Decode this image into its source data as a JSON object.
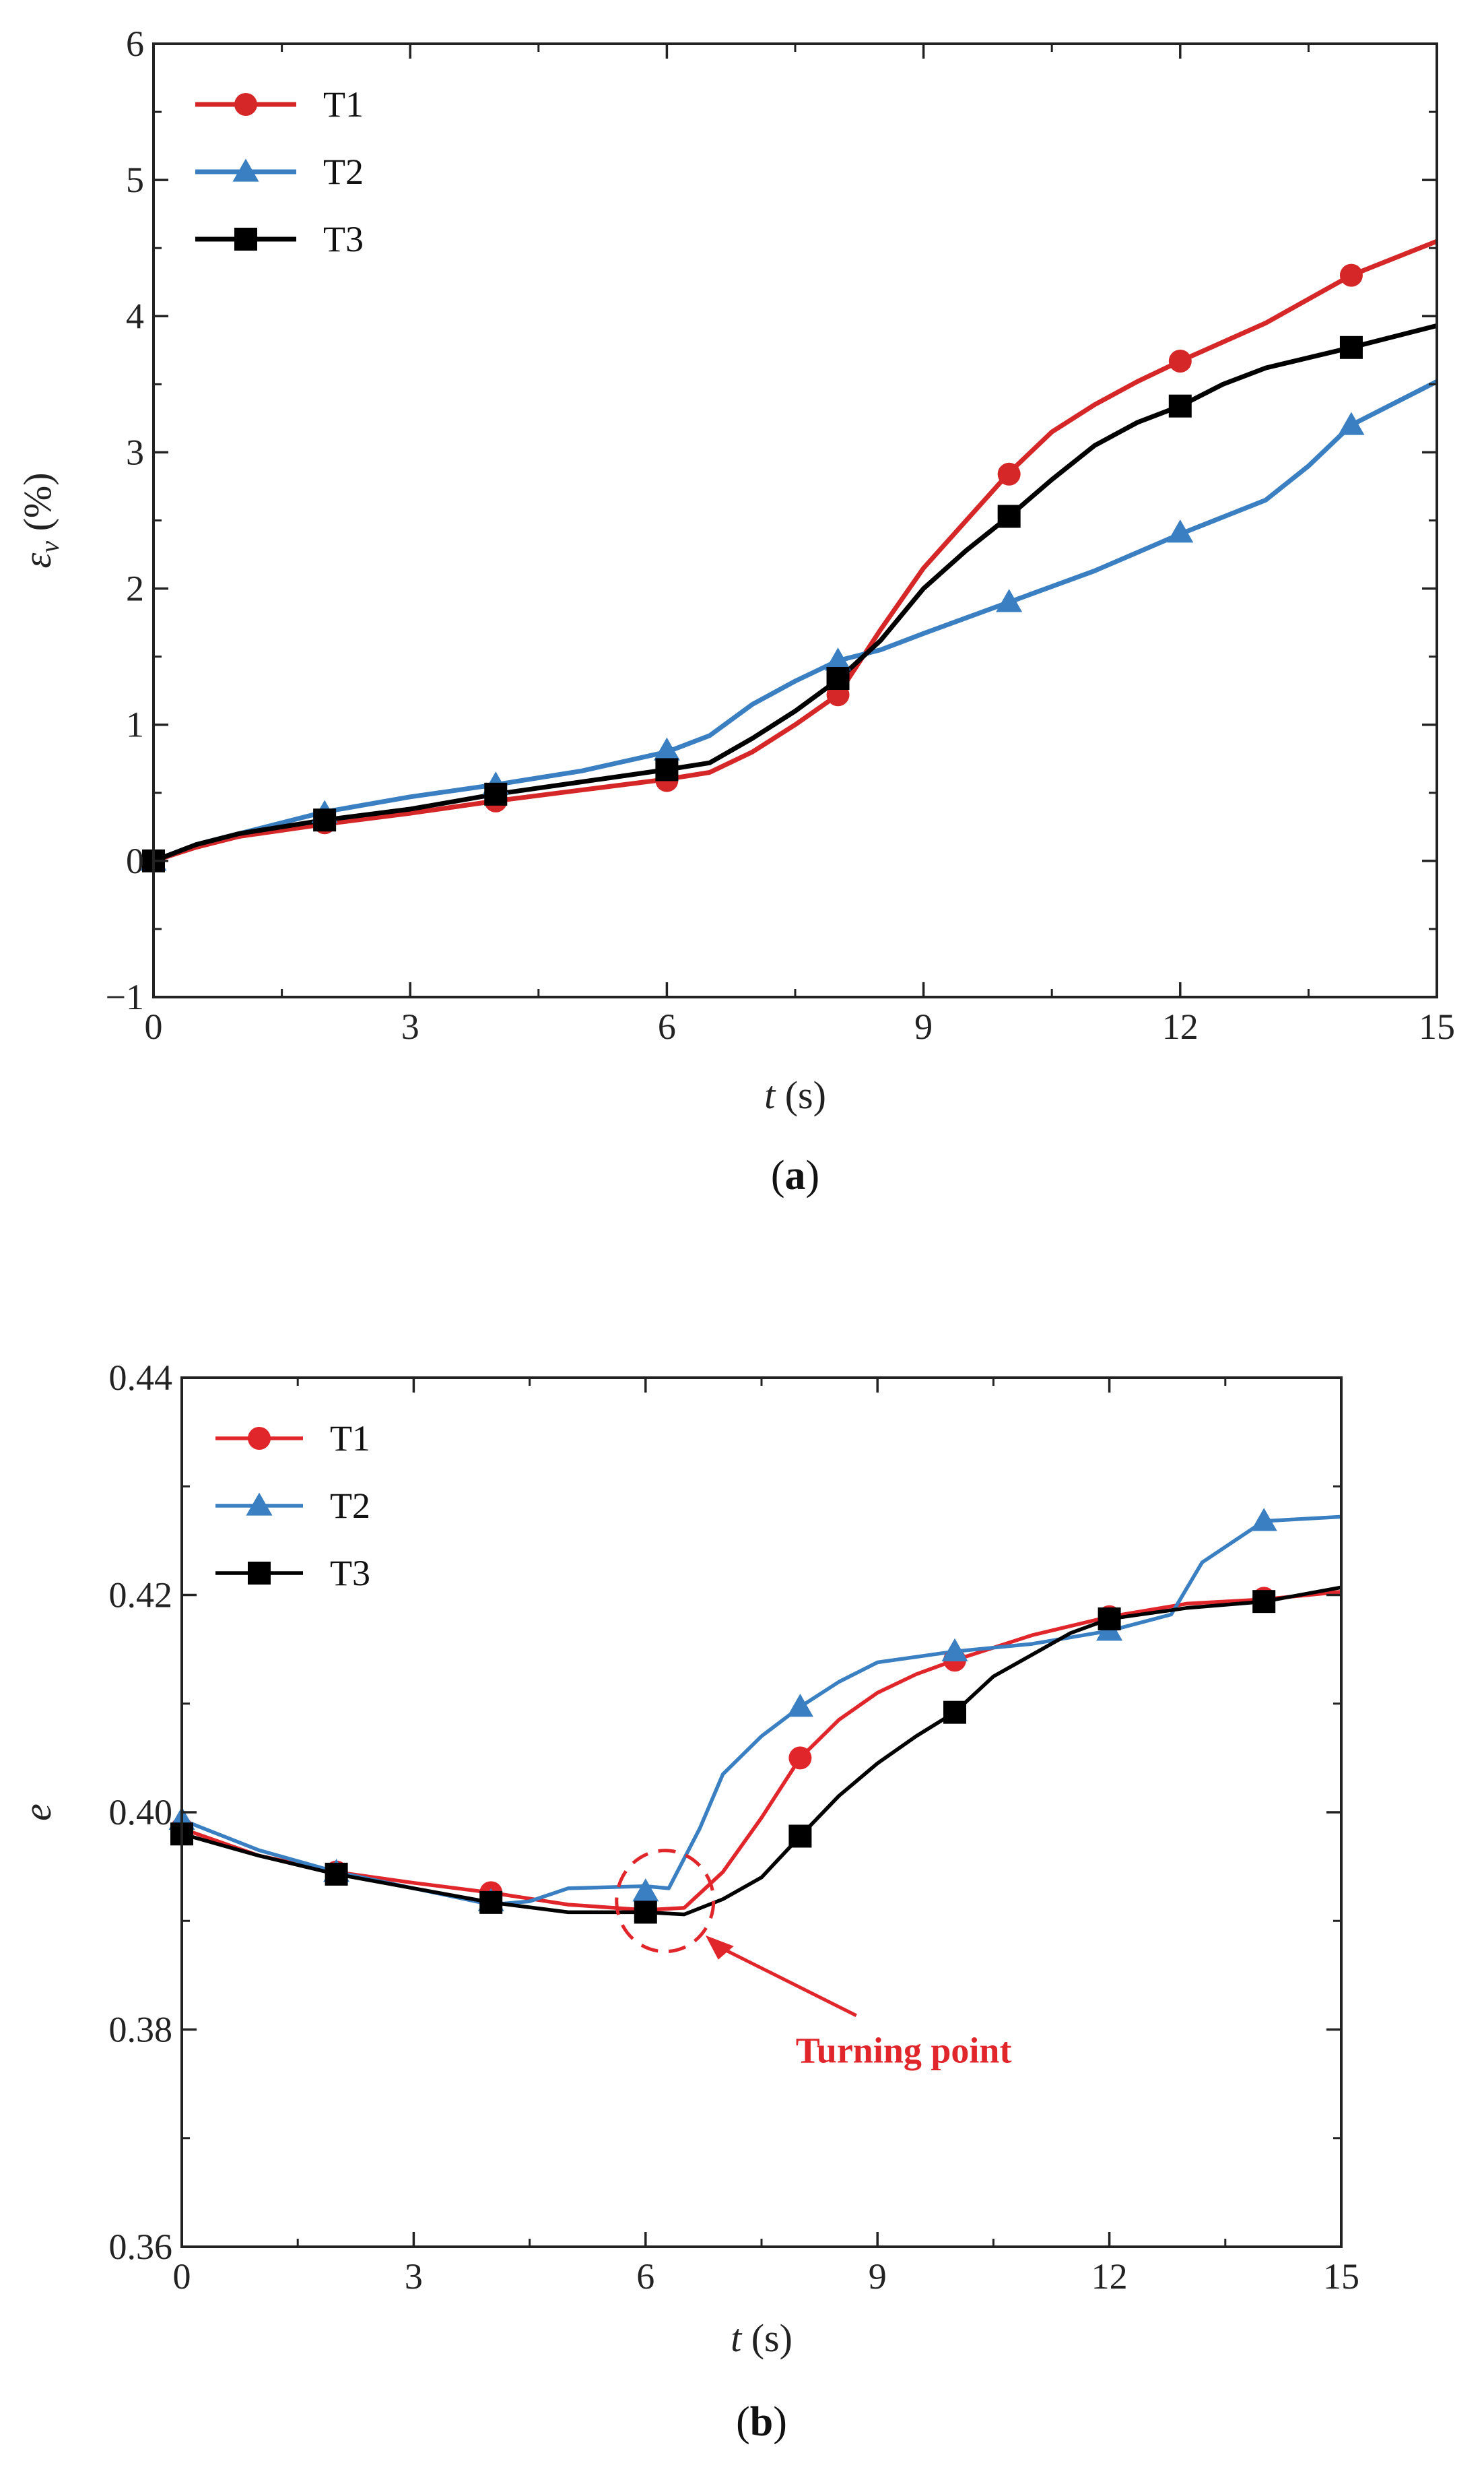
{
  "chart_data": [
    {
      "type": "line",
      "id": "a",
      "panel_label": "a",
      "xlabel_italic": "t",
      "xlabel_unit": " (s)",
      "ylabel_symbol": "ε",
      "ylabel_sub": "v",
      "ylabel_unit": " (%)",
      "xlim": [
        0,
        15
      ],
      "ylim": [
        -1,
        6
      ],
      "xticks": [
        0,
        3,
        6,
        9,
        12,
        15
      ],
      "xtick_labels": [
        "0",
        "3",
        "6",
        "9",
        "12",
        "15"
      ],
      "yticks": [
        -1,
        0,
        1,
        2,
        3,
        4,
        5,
        6
      ],
      "ytick_labels": [
        "−1",
        "0",
        "1",
        "2",
        "3",
        "4",
        "5",
        "6"
      ],
      "legend_position": "top-left",
      "series": [
        {
          "name": "T1",
          "color": "#d62728",
          "marker": "circle",
          "line": [
            [
              0,
              0
            ],
            [
              0.5,
              0.1
            ],
            [
              1,
              0.18
            ],
            [
              2,
              0.27
            ],
            [
              3,
              0.35
            ],
            [
              4,
              0.44
            ],
            [
              5,
              0.52
            ],
            [
              6,
              0.6
            ],
            [
              6.5,
              0.65
            ],
            [
              7,
              0.8
            ],
            [
              7.5,
              1.0
            ],
            [
              8,
              1.22
            ],
            [
              8.5,
              1.7
            ],
            [
              9,
              2.15
            ],
            [
              9.5,
              2.5
            ],
            [
              10,
              2.85
            ],
            [
              10.5,
              3.15
            ],
            [
              11,
              3.35
            ],
            [
              11.5,
              3.52
            ],
            [
              12,
              3.67
            ],
            [
              13,
              3.95
            ],
            [
              14,
              4.3
            ],
            [
              15,
              4.55
            ]
          ],
          "markers": [
            [
              0,
              0
            ],
            [
              2,
              0.28
            ],
            [
              4,
              0.44
            ],
            [
              6,
              0.59
            ],
            [
              8,
              1.22
            ],
            [
              10,
              2.84
            ],
            [
              12,
              3.67
            ],
            [
              14,
              4.3
            ]
          ]
        },
        {
          "name": "T2",
          "color": "#3a7fc1",
          "marker": "triangle",
          "line": [
            [
              0,
              0
            ],
            [
              0.5,
              0.12
            ],
            [
              1,
              0.2
            ],
            [
              2,
              0.36
            ],
            [
              3,
              0.47
            ],
            [
              4,
              0.56
            ],
            [
              5,
              0.66
            ],
            [
              6,
              0.8
            ],
            [
              6.5,
              0.92
            ],
            [
              7,
              1.15
            ],
            [
              7.5,
              1.32
            ],
            [
              8,
              1.47
            ],
            [
              8.5,
              1.55
            ],
            [
              9,
              1.67
            ],
            [
              10,
              1.9
            ],
            [
              11,
              2.13
            ],
            [
              12,
              2.4
            ],
            [
              13,
              2.65
            ],
            [
              13.5,
              2.9
            ],
            [
              14,
              3.2
            ],
            [
              15,
              3.52
            ]
          ],
          "markers": [
            [
              0,
              0
            ],
            [
              2,
              0.35
            ],
            [
              4,
              0.56
            ],
            [
              6,
              0.81
            ],
            [
              8,
              1.47
            ],
            [
              10,
              1.9
            ],
            [
              12,
              2.41
            ],
            [
              14,
              3.2
            ]
          ]
        },
        {
          "name": "T3",
          "color": "#000000",
          "marker": "square",
          "line": [
            [
              0,
              0
            ],
            [
              0.5,
              0.12
            ],
            [
              1,
              0.2
            ],
            [
              2,
              0.3
            ],
            [
              3,
              0.38
            ],
            [
              4,
              0.49
            ],
            [
              5,
              0.58
            ],
            [
              6,
              0.67
            ],
            [
              6.5,
              0.72
            ],
            [
              7,
              0.9
            ],
            [
              7.5,
              1.1
            ],
            [
              8,
              1.33
            ],
            [
              8.5,
              1.62
            ],
            [
              9,
              2.0
            ],
            [
              9.5,
              2.28
            ],
            [
              10,
              2.53
            ],
            [
              10.5,
              2.8
            ],
            [
              11,
              3.05
            ],
            [
              11.5,
              3.22
            ],
            [
              12,
              3.34
            ],
            [
              12.5,
              3.5
            ],
            [
              13,
              3.62
            ],
            [
              14,
              3.77
            ],
            [
              15,
              3.93
            ]
          ],
          "markers": [
            [
              0,
              0
            ],
            [
              2,
              0.3
            ],
            [
              4,
              0.49
            ],
            [
              6,
              0.67
            ],
            [
              8,
              1.34
            ],
            [
              10,
              2.53
            ],
            [
              12,
              3.34
            ],
            [
              14,
              3.77
            ]
          ]
        }
      ]
    },
    {
      "type": "line",
      "id": "b",
      "panel_label": "b",
      "xlabel_italic": "t",
      "xlabel_unit": " (s)",
      "ylabel_symbol": "e",
      "xlim": [
        0,
        15
      ],
      "ylim": [
        0.36,
        0.44
      ],
      "xticks": [
        0,
        3,
        6,
        9,
        12,
        15
      ],
      "xtick_labels": [
        "0",
        "3",
        "6",
        "9",
        "12",
        "15"
      ],
      "yticks": [
        0.36,
        0.38,
        0.4,
        0.42,
        0.44
      ],
      "ytick_labels": [
        "0.36",
        "0.38",
        "0.40",
        "0.42",
        "0.44"
      ],
      "legend_position": "top-left",
      "annotation": {
        "text": "Turning point",
        "x": 6.2,
        "y": 0.3909
      },
      "series": [
        {
          "name": "T1",
          "color": "#e0262b",
          "marker": "circle",
          "line": [
            [
              0,
              0.3985
            ],
            [
              1,
              0.396
            ],
            [
              2,
              0.3945
            ],
            [
              3,
              0.3935
            ],
            [
              4,
              0.3926
            ],
            [
              5,
              0.3915
            ],
            [
              6,
              0.391
            ],
            [
              6.5,
              0.3912
            ],
            [
              7,
              0.3945
            ],
            [
              7.5,
              0.3995
            ],
            [
              8,
              0.405
            ],
            [
              8.5,
              0.4085
            ],
            [
              9,
              0.411
            ],
            [
              9.5,
              0.4127
            ],
            [
              10,
              0.414
            ],
            [
              11,
              0.4163
            ],
            [
              12,
              0.418
            ],
            [
              13,
              0.4192
            ],
            [
              14,
              0.4196
            ],
            [
              15,
              0.4203
            ]
          ],
          "markers": [
            [
              0,
              0.3985
            ],
            [
              2,
              0.3945
            ],
            [
              4,
              0.3926
            ],
            [
              6,
              0.391
            ],
            [
              8,
              0.405
            ],
            [
              10,
              0.414
            ],
            [
              12,
              0.418
            ],
            [
              14,
              0.4197
            ]
          ]
        },
        {
          "name": "T2",
          "color": "#3a7fc1",
          "marker": "triangle",
          "line": [
            [
              0,
              0.3993
            ],
            [
              1,
              0.3965
            ],
            [
              2,
              0.3945
            ],
            [
              3,
              0.393
            ],
            [
              4,
              0.3915
            ],
            [
              4.5,
              0.3918
            ],
            [
              5,
              0.393
            ],
            [
              6,
              0.3932
            ],
            [
              6.3,
              0.393
            ],
            [
              6.7,
              0.3985
            ],
            [
              7,
              0.4035
            ],
            [
              7.5,
              0.407
            ],
            [
              8,
              0.4097
            ],
            [
              8.5,
              0.412
            ],
            [
              9,
              0.4138
            ],
            [
              10,
              0.4148
            ],
            [
              11,
              0.4155
            ],
            [
              12,
              0.4167
            ],
            [
              12.8,
              0.4182
            ],
            [
              13.2,
              0.423
            ],
            [
              14,
              0.4268
            ],
            [
              15,
              0.4272
            ]
          ],
          "markers": [
            [
              0,
              0.3993
            ],
            [
              2,
              0.3945
            ],
            [
              4,
              0.3918
            ],
            [
              6,
              0.3927
            ],
            [
              8,
              0.4097
            ],
            [
              10,
              0.4148
            ],
            [
              12,
              0.4167
            ],
            [
              14,
              0.4268
            ]
          ]
        },
        {
          "name": "T3",
          "color": "#000000",
          "marker": "square",
          "line": [
            [
              0,
              0.398
            ],
            [
              1,
              0.396
            ],
            [
              2,
              0.3943
            ],
            [
              3,
              0.393
            ],
            [
              4,
              0.3917
            ],
            [
              5,
              0.3908
            ],
            [
              6,
              0.3908
            ],
            [
              6.5,
              0.3906
            ],
            [
              7,
              0.392
            ],
            [
              7.5,
              0.394
            ],
            [
              8,
              0.3978
            ],
            [
              8.5,
              0.4015
            ],
            [
              9,
              0.4045
            ],
            [
              9.5,
              0.407
            ],
            [
              10,
              0.4092
            ],
            [
              10.5,
              0.4125
            ],
            [
              11,
              0.4145
            ],
            [
              11.5,
              0.4165
            ],
            [
              12,
              0.4178
            ],
            [
              13,
              0.4188
            ],
            [
              14,
              0.4194
            ],
            [
              15,
              0.4207
            ]
          ],
          "markers": [
            [
              0,
              0.398
            ],
            [
              2,
              0.3943
            ],
            [
              4,
              0.3917
            ],
            [
              6,
              0.3908
            ],
            [
              8,
              0.3978
            ],
            [
              10,
              0.4092
            ],
            [
              12,
              0.4178
            ],
            [
              14,
              0.4194
            ]
          ]
        }
      ]
    }
  ]
}
